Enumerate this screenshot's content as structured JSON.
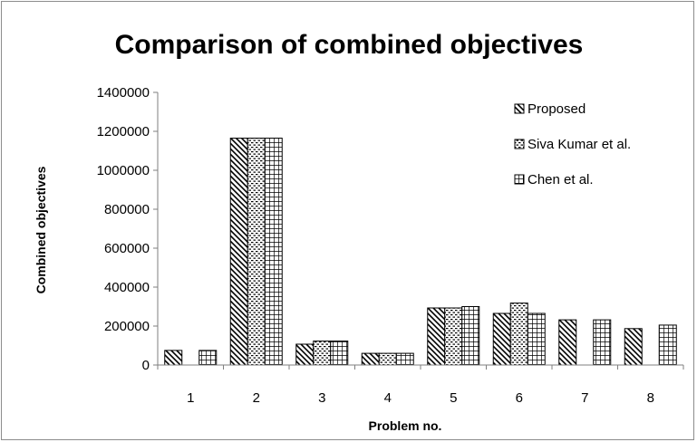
{
  "chart_data": {
    "type": "bar",
    "title": "Comparison of combined objectives",
    "xlabel": "Problem no.",
    "ylabel": "Combined objectives",
    "categories": [
      "1",
      "2",
      "3",
      "4",
      "5",
      "6",
      "7",
      "8"
    ],
    "ylim": [
      0,
      1400000
    ],
    "yticks": [
      0,
      200000,
      400000,
      600000,
      800000,
      1000000,
      1200000,
      1400000
    ],
    "series": [
      {
        "name": "Proposed",
        "pattern": "diagonal",
        "values": [
          75000,
          1165000,
          107000,
          60000,
          293000,
          265000,
          232000,
          187000
        ]
      },
      {
        "name": "Siva Kumar et al.",
        "pattern": "dots",
        "values": [
          null,
          1165000,
          123000,
          60000,
          293000,
          318000,
          null,
          null
        ]
      },
      {
        "name": "Chen et al.",
        "pattern": "grid",
        "values": [
          75000,
          1165000,
          123000,
          60000,
          300000,
          265000,
          232000,
          205000
        ]
      }
    ],
    "legend_position": "top-right",
    "grid": false
  }
}
